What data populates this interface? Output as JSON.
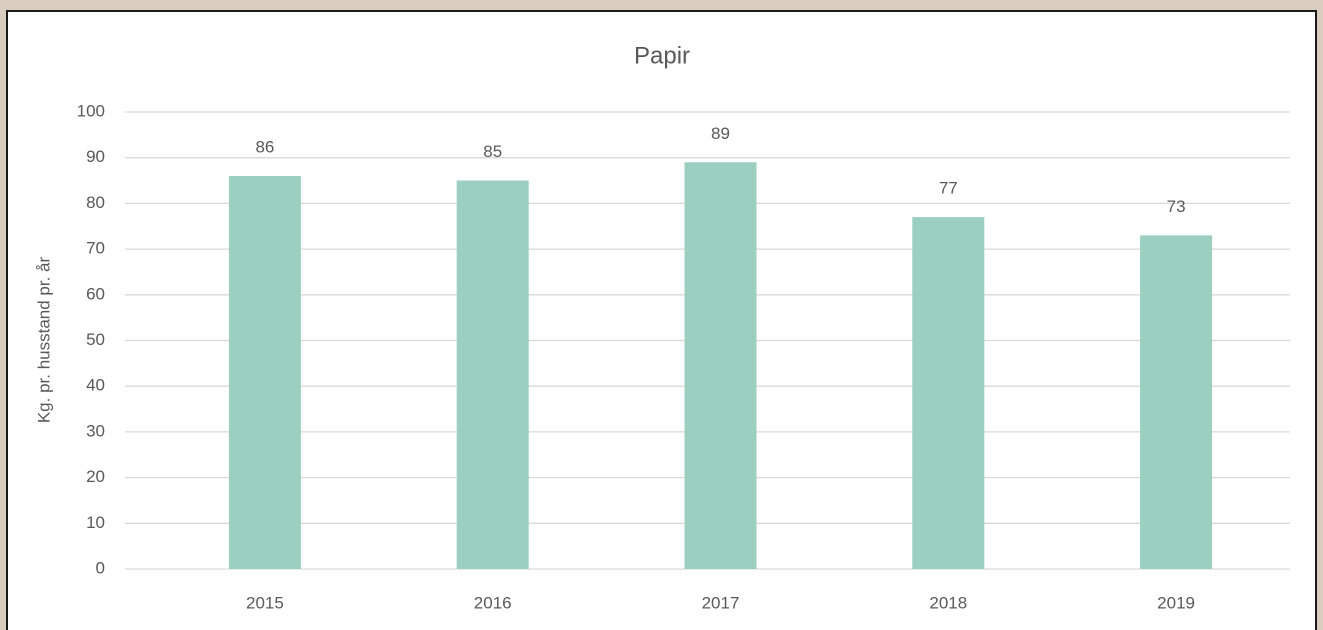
{
  "chart_data": {
    "type": "bar",
    "title": "Papir",
    "ylabel": "Kg. pr. husstand pr. år",
    "categories": [
      "2015",
      "2016",
      "2017",
      "2018",
      "2019"
    ],
    "values": [
      86,
      85,
      89,
      77,
      73
    ],
    "color": "#9bcfc0",
    "ylim": [
      0,
      100
    ],
    "yticks": [
      0,
      10,
      20,
      30,
      40,
      50,
      60,
      70,
      80,
      90,
      100
    ],
    "grid": true
  }
}
